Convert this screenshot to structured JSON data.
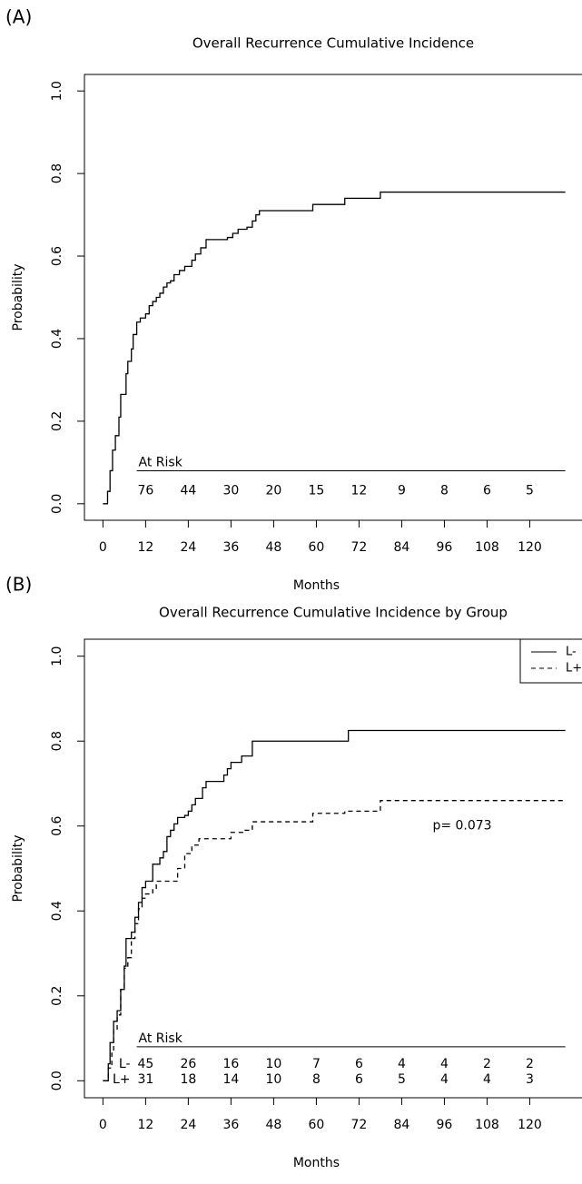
{
  "panel_labels": [
    "(A)",
    "(B)"
  ],
  "chart_data": [
    {
      "type": "line",
      "step": true,
      "title": "Overall Recurrence Cumulative Incidence",
      "xlabel": "Months",
      "ylabel": "Probability",
      "xlim": [
        -5.2,
        135.2
      ],
      "ylim": [
        -0.04,
        1.04
      ],
      "xticks": [
        0,
        12,
        24,
        36,
        48,
        60,
        72,
        84,
        96,
        108,
        120
      ],
      "yticks": [
        {
          "value": 0,
          "label": "0.0"
        },
        0.2,
        0.4,
        0.6,
        0.8,
        {
          "value": 1,
          "label": "1.0"
        }
      ],
      "series": [
        {
          "color": "#000000",
          "dash": false,
          "x": [
            0,
            1.3,
            2,
            2.7,
            3.5,
            4.5,
            5,
            6.5,
            7,
            8,
            8.5,
            9.5,
            10.5,
            12,
            13,
            14,
            15,
            16,
            17,
            18,
            19,
            20,
            21.5,
            23,
            25,
            26,
            27.5,
            29,
            35,
            36.5,
            38,
            40.5,
            42,
            43,
            44,
            59,
            68,
            78,
            130
          ],
          "values": [
            0,
            0.03,
            0.08,
            0.13,
            0.165,
            0.21,
            0.265,
            0.315,
            0.345,
            0.375,
            0.41,
            0.44,
            0.45,
            0.46,
            0.48,
            0.49,
            0.5,
            0.51,
            0.525,
            0.535,
            0.54,
            0.555,
            0.565,
            0.575,
            0.59,
            0.605,
            0.62,
            0.64,
            0.645,
            0.655,
            0.665,
            0.67,
            0.685,
            0.7,
            0.71,
            0.725,
            0.74,
            0.755,
            0.755
          ]
        }
      ],
      "at_risk": {
        "title": "At Risk",
        "x": [
          12,
          24,
          36,
          48,
          60,
          72,
          84,
          96,
          108,
          120
        ],
        "rows": [
          [
            76,
            44,
            30,
            20,
            15,
            12,
            9,
            8,
            6,
            5
          ]
        ]
      }
    },
    {
      "type": "line",
      "step": true,
      "title": "Overall Recurrence Cumulative Incidence by Group",
      "xlabel": "Months",
      "ylabel": "Probability",
      "xlim": [
        -5.2,
        135.2
      ],
      "ylim": [
        -0.04,
        1.04
      ],
      "xticks": [
        0,
        12,
        24,
        36,
        48,
        60,
        72,
        84,
        96,
        108,
        120
      ],
      "yticks": [
        {
          "value": 0,
          "label": "0.0"
        },
        0.2,
        0.4,
        0.6,
        0.8,
        {
          "value": 1,
          "label": "1.0"
        }
      ],
      "legend": "topright",
      "annotation": "p= 0.073",
      "series": [
        {
          "name": "L-",
          "color": "#000000",
          "dash": false,
          "x": [
            0,
            1.5,
            2,
            3,
            4,
            5,
            6,
            6.5,
            8,
            9,
            10,
            11,
            12,
            14,
            16,
            17,
            18,
            19,
            20,
            21,
            23,
            24,
            25,
            26,
            28,
            29,
            34,
            35,
            36,
            39,
            42,
            69,
            130
          ],
          "values": [
            0,
            0.04,
            0.09,
            0.14,
            0.165,
            0.215,
            0.27,
            0.335,
            0.35,
            0.385,
            0.42,
            0.455,
            0.47,
            0.51,
            0.525,
            0.54,
            0.575,
            0.59,
            0.605,
            0.62,
            0.625,
            0.635,
            0.65,
            0.665,
            0.69,
            0.705,
            0.72,
            0.735,
            0.75,
            0.765,
            0.8,
            0.825,
            0.825
          ]
        },
        {
          "name": "L+",
          "color": "#000000",
          "dash": true,
          "x": [
            0,
            1.5,
            2.5,
            3,
            4,
            5,
            6,
            7,
            8,
            9,
            10,
            11,
            12,
            14,
            15,
            21,
            23,
            25,
            27,
            36,
            40,
            42,
            59,
            68,
            78,
            130
          ],
          "values": [
            0,
            0.03,
            0.065,
            0.12,
            0.155,
            0.215,
            0.265,
            0.29,
            0.335,
            0.37,
            0.405,
            0.43,
            0.44,
            0.45,
            0.47,
            0.5,
            0.535,
            0.555,
            0.57,
            0.585,
            0.59,
            0.61,
            0.63,
            0.635,
            0.66,
            0.66
          ]
        }
      ],
      "at_risk": {
        "title": "At Risk",
        "x": [
          12,
          24,
          36,
          48,
          60,
          72,
          84,
          96,
          108,
          120
        ],
        "rows": [
          [
            45,
            26,
            16,
            10,
            7,
            6,
            4,
            4,
            2,
            2
          ],
          [
            31,
            18,
            14,
            10,
            8,
            6,
            5,
            4,
            4,
            3
          ]
        ]
      }
    }
  ]
}
